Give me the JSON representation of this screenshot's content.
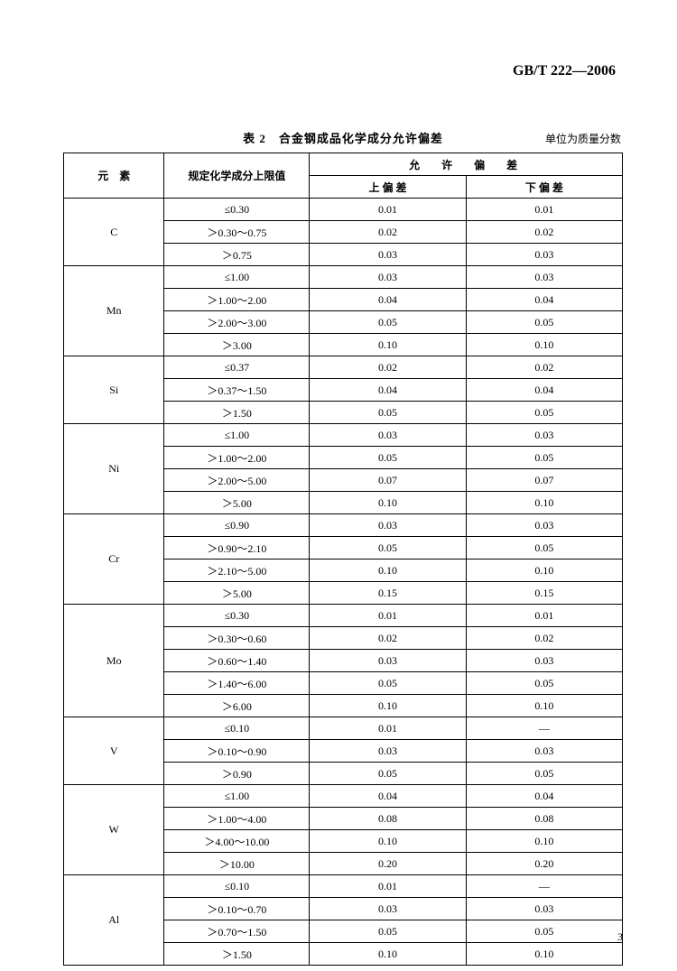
{
  "standard_id": "GB/T 222—2006",
  "table_caption": "表 2　合金钢成品化学成分允许偏差",
  "unit_label": "单位为质量分数",
  "page_number": "3",
  "headers": {
    "element": "元　素",
    "range": "规定化学成分上限值",
    "tolerance_group": "允　许　偏　差",
    "upper": "上 偏 差",
    "lower": "下 偏 差"
  },
  "groups": [
    {
      "element": "C",
      "rows": [
        {
          "range": "≤0.30",
          "upper": "0.01",
          "lower": "0.01"
        },
        {
          "range": "＞0.30～0.75",
          "upper": "0.02",
          "lower": "0.02"
        },
        {
          "range": "＞0.75",
          "upper": "0.03",
          "lower": "0.03"
        }
      ]
    },
    {
      "element": "Mn",
      "rows": [
        {
          "range": "≤1.00",
          "upper": "0.03",
          "lower": "0.03"
        },
        {
          "range": "＞1.00～2.00",
          "upper": "0.04",
          "lower": "0.04"
        },
        {
          "range": "＞2.00～3.00",
          "upper": "0.05",
          "lower": "0.05"
        },
        {
          "range": "＞3.00",
          "upper": "0.10",
          "lower": "0.10"
        }
      ]
    },
    {
      "element": "Si",
      "rows": [
        {
          "range": "≤0.37",
          "upper": "0.02",
          "lower": "0.02"
        },
        {
          "range": "＞0.37～1.50",
          "upper": "0.04",
          "lower": "0.04"
        },
        {
          "range": "＞1.50",
          "upper": "0.05",
          "lower": "0.05"
        }
      ]
    },
    {
      "element": "Ni",
      "rows": [
        {
          "range": "≤1.00",
          "upper": "0.03",
          "lower": "0.03"
        },
        {
          "range": "＞1.00～2.00",
          "upper": "0.05",
          "lower": "0.05"
        },
        {
          "range": "＞2.00～5.00",
          "upper": "0.07",
          "lower": "0.07"
        },
        {
          "range": "＞5.00",
          "upper": "0.10",
          "lower": "0.10"
        }
      ]
    },
    {
      "element": "Cr",
      "rows": [
        {
          "range": "≤0.90",
          "upper": "0.03",
          "lower": "0.03"
        },
        {
          "range": "＞0.90～2.10",
          "upper": "0.05",
          "lower": "0.05"
        },
        {
          "range": "＞2.10～5.00",
          "upper": "0.10",
          "lower": "0.10"
        },
        {
          "range": "＞5.00",
          "upper": "0.15",
          "lower": "0.15"
        }
      ]
    },
    {
      "element": "Mo",
      "rows": [
        {
          "range": "≤0.30",
          "upper": "0.01",
          "lower": "0.01"
        },
        {
          "range": "＞0.30～0.60",
          "upper": "0.02",
          "lower": "0.02"
        },
        {
          "range": "＞0.60～1.40",
          "upper": "0.03",
          "lower": "0.03"
        },
        {
          "range": "＞1.40～6.00",
          "upper": "0.05",
          "lower": "0.05"
        },
        {
          "range": "＞6.00",
          "upper": "0.10",
          "lower": "0.10"
        }
      ]
    },
    {
      "element": "V",
      "rows": [
        {
          "range": "≤0.10",
          "upper": "0.01",
          "lower": "—"
        },
        {
          "range": "＞0.10～0.90",
          "upper": "0.03",
          "lower": "0.03"
        },
        {
          "range": "＞0.90",
          "upper": "0.05",
          "lower": "0.05"
        }
      ]
    },
    {
      "element": "W",
      "rows": [
        {
          "range": "≤1.00",
          "upper": "0.04",
          "lower": "0.04"
        },
        {
          "range": "＞1.00～4.00",
          "upper": "0.08",
          "lower": "0.08"
        },
        {
          "range": "＞4.00～10.00",
          "upper": "0.10",
          "lower": "0.10"
        },
        {
          "range": "＞10.00",
          "upper": "0.20",
          "lower": "0.20"
        }
      ]
    },
    {
      "element": "Al",
      "rows": [
        {
          "range": "≤0.10",
          "upper": "0.01",
          "lower": "—"
        },
        {
          "range": "＞0.10～0.70",
          "upper": "0.03",
          "lower": "0.03"
        },
        {
          "range": "＞0.70～1.50",
          "upper": "0.05",
          "lower": "0.05"
        },
        {
          "range": "＞1.50",
          "upper": "0.10",
          "lower": "0.10"
        }
      ]
    }
  ]
}
